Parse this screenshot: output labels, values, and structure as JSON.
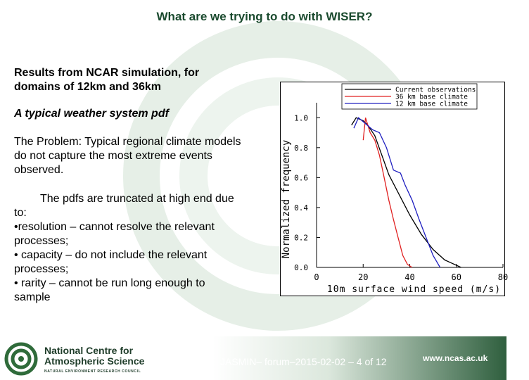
{
  "title": "What are we trying to do with WISER?",
  "results_heading": [
    "Results from NCAR simulation, for",
    "domains of 12km and 36km"
  ],
  "pdf_heading": "A typical weather system pdf",
  "problem": [
    "The Problem: Typical regional climate models",
    "do not capture the most extreme events",
    "observed."
  ],
  "truncated": [
    "The pdfs are truncated at high end due",
    "to:"
  ],
  "bullets": [
    [
      "•resolution – cannot resolve the relevant",
      "processes;"
    ],
    [
      "•  capacity – do not include the relevant",
      "processes;"
    ],
    [
      "•  rarity – cannot be run long enough to",
      "sample"
    ]
  ],
  "footer": {
    "org_line1": "National Centre for",
    "org_line2": "Atmospheric Science",
    "org_line3": "NATURAL ENVIRONMENT RESEARCH COUNCIL",
    "slide_text": "JASMIN– forum–2015-02-02 – 4 of 12",
    "url": "www.ncas.ac.uk"
  },
  "colors": {
    "title": "#1a4a2e",
    "obs": "#000000",
    "km36": "#e02020",
    "km12": "#2020c0"
  },
  "chart_data": {
    "type": "line",
    "xlabel": "10m surface wind speed (m/s)",
    "ylabel": "Normalized frequency",
    "xlim": [
      0,
      80
    ],
    "ylim": [
      0,
      1.1
    ],
    "xticks": [
      "0",
      "20",
      "40",
      "60",
      "80"
    ],
    "yticks": [
      "0.0",
      "0.2",
      "0.4",
      "0.6",
      "0.8",
      "1.0"
    ],
    "series": [
      {
        "name": "Current observations",
        "color": "#000000",
        "x": [
          15,
          17,
          20,
          22,
          25,
          28,
          31,
          35,
          40,
          45,
          50,
          55,
          62
        ],
        "y": [
          0.95,
          1.0,
          0.98,
          0.95,
          0.88,
          0.75,
          0.62,
          0.5,
          0.35,
          0.22,
          0.12,
          0.05,
          0.0
        ]
      },
      {
        "name": "36 km base climate",
        "color": "#e02020",
        "x": [
          20,
          21,
          23,
          25,
          27,
          29,
          31,
          33,
          35,
          37,
          39,
          41
        ],
        "y": [
          0.85,
          1.0,
          0.9,
          0.85,
          0.75,
          0.6,
          0.45,
          0.32,
          0.2,
          0.08,
          0.02,
          0.0
        ]
      },
      {
        "name": "12 km base climate",
        "color": "#2020c0",
        "x": [
          16,
          18,
          21,
          24,
          27,
          30,
          33,
          36,
          38,
          41,
          44,
          47,
          50,
          53
        ],
        "y": [
          0.93,
          1.0,
          0.96,
          0.92,
          0.9,
          0.8,
          0.65,
          0.63,
          0.55,
          0.45,
          0.32,
          0.2,
          0.08,
          0.0
        ]
      }
    ],
    "legend": "top-right",
    "grid": false
  }
}
